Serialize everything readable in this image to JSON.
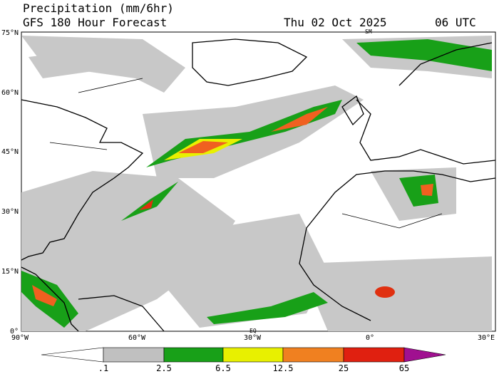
{
  "header": {
    "title": "Precipitation (mm/6hr)",
    "subtitle": "GFS 180 Hour Forecast",
    "date": "Thu 02 Oct 2025",
    "time": "06 UTC"
  },
  "map": {
    "lat_labels": [
      "75°N",
      "60°N",
      "45°N",
      "30°N",
      "15°N",
      "0°"
    ],
    "lon_labels": [
      "90°W",
      "60°W",
      "30°W",
      "0°",
      "30°E"
    ],
    "markers": [
      "SM",
      "EQ"
    ]
  },
  "colorbar": {
    "labels": [
      ".1",
      "2.5",
      "6.5",
      "12.5",
      "25",
      "65"
    ]
  }
}
